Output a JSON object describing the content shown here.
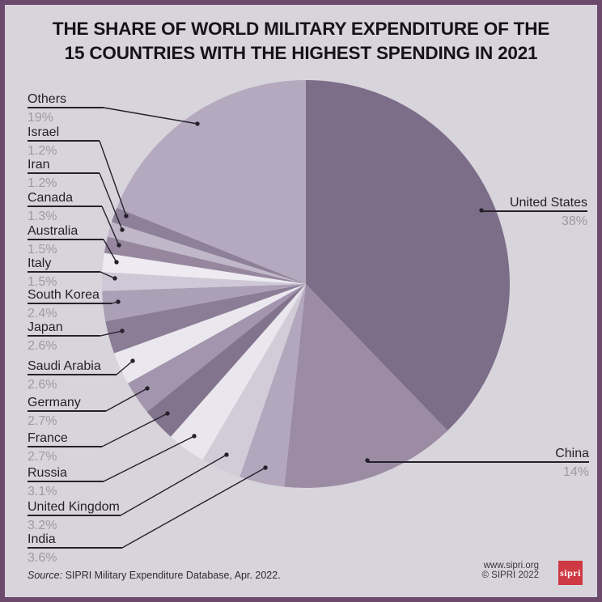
{
  "title": {
    "line1": "THE SHARE OF WORLD MILITARY EXPENDITURE OF THE",
    "line2": "15 COUNTRIES WITH THE HIGHEST SPENDING IN 2021"
  },
  "colors": {
    "background": "#d8d4dc",
    "border": "#6b4a6e",
    "callout_line": "#25212b",
    "percent_text": "#9e99a3",
    "logo_red": "#ce3943"
  },
  "chart_data": {
    "type": "pie",
    "title": "The share of world military expenditure of the 15 countries with the highest spending in 2021",
    "unit": "% of world military expenditure",
    "start_angle_deg": 0,
    "direction": "clockwise",
    "slices": [
      {
        "label": "United States",
        "value": 38,
        "display": "38%",
        "color": "#7c6e88"
      },
      {
        "label": "China",
        "value": 14,
        "display": "14%",
        "color": "#9b8ca4"
      },
      {
        "label": "India",
        "value": 3.6,
        "display": "3.6%",
        "color": "#b3a7bd"
      },
      {
        "label": "United Kingdom",
        "value": 3.2,
        "display": "3.2%",
        "color": "#d2cbd8"
      },
      {
        "label": "Russia",
        "value": 3.1,
        "display": "3.1%",
        "color": "#e9e7ed"
      },
      {
        "label": "France",
        "value": 2.7,
        "display": "2.7%",
        "color": "#83748e"
      },
      {
        "label": "Germany",
        "value": 2.7,
        "display": "2.7%",
        "color": "#a295ad"
      },
      {
        "label": "Saudi Arabia",
        "value": 2.6,
        "display": "2.6%",
        "color": "#eae8ee"
      },
      {
        "label": "Japan",
        "value": 2.6,
        "display": "2.6%",
        "color": "#8c7d96"
      },
      {
        "label": "South Korea",
        "value": 2.4,
        "display": "2.4%",
        "color": "#aca0b6"
      },
      {
        "label": "Italy",
        "value": 1.5,
        "display": "1.5%",
        "color": "#cfc8d6"
      },
      {
        "label": "Australia",
        "value": 1.5,
        "display": "1.5%",
        "color": "#edebf1"
      },
      {
        "label": "Canada",
        "value": 1.3,
        "display": "1.3%",
        "color": "#96879f"
      },
      {
        "label": "Iran",
        "value": 1.2,
        "display": "1.2%",
        "color": "#c0b7c9"
      },
      {
        "label": "Israel",
        "value": 1.2,
        "display": "1.2%",
        "color": "#8e8098"
      },
      {
        "label": "Others",
        "value": 19,
        "display": "19%",
        "color": "#b5a9bf"
      }
    ]
  },
  "footer": {
    "source_prefix": "Source:",
    "source_text": " SIPRI Military Expenditure Database, Apr. 2022.",
    "website": "www.sipri.org",
    "copyright": "© SIPRI 2022",
    "logo_text": "sipri"
  }
}
